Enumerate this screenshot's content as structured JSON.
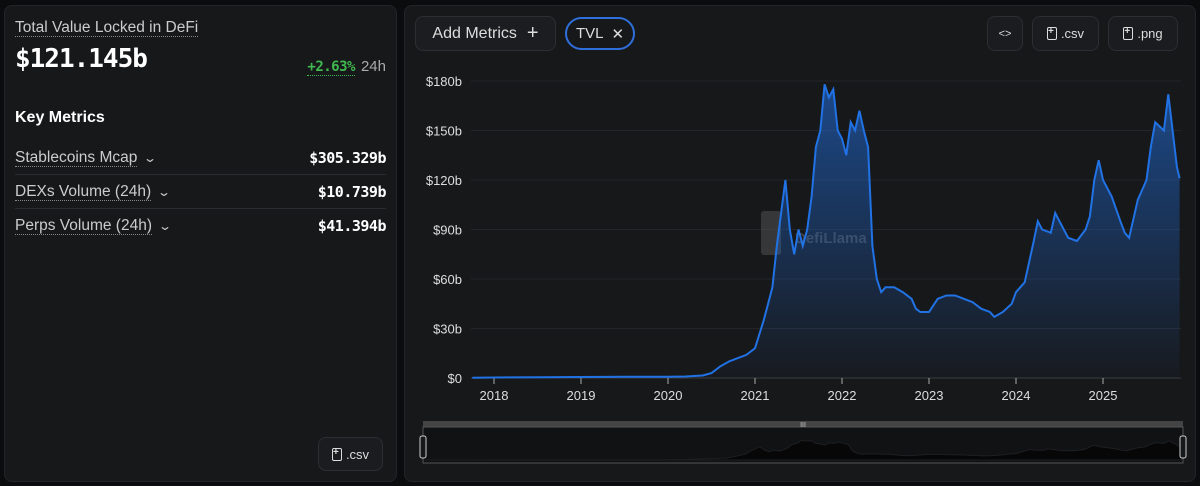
{
  "summary": {
    "title": "Total Value Locked in DeFi",
    "value": "$121.145b",
    "change_pct": "+2.63%",
    "change_period": "24h",
    "key_metrics_heading": "Key Metrics",
    "metrics": [
      {
        "label": "Stablecoins Mcap",
        "value": "$305.329b"
      },
      {
        "label": "DEXs Volume (24h)",
        "value": "$10.739b"
      },
      {
        "label": "Perps Volume (24h)",
        "value": "$41.394b"
      }
    ],
    "csv_label": ".csv"
  },
  "toolbar": {
    "add_metrics_label": "Add Metrics",
    "add_icon": "plus-icon",
    "chip_label": "TVL",
    "chip_close_icon": "close-icon",
    "embed_label": "<>",
    "csv_label": ".csv",
    "png_label": ".png"
  },
  "watermark": "DefiLlama",
  "colors": {
    "line": "#2172e5",
    "positive": "#3fb950",
    "chip_border": "#2f6fdc"
  },
  "chart_data": {
    "type": "area",
    "series": [
      {
        "name": "TVL",
        "x": [
          2017.75,
          2018.0,
          2018.5,
          2019.0,
          2019.5,
          2020.0,
          2020.2,
          2020.4,
          2020.5,
          2020.6,
          2020.7,
          2020.8,
          2020.9,
          2021.0,
          2021.1,
          2021.15,
          2021.2,
          2021.25,
          2021.3,
          2021.35,
          2021.4,
          2021.45,
          2021.5,
          2021.55,
          2021.6,
          2021.65,
          2021.7,
          2021.75,
          2021.8,
          2021.85,
          2021.9,
          2021.95,
          2022.0,
          2022.05,
          2022.1,
          2022.15,
          2022.2,
          2022.25,
          2022.3,
          2022.35,
          2022.4,
          2022.45,
          2022.5,
          2022.6,
          2022.7,
          2022.8,
          2022.85,
          2022.9,
          2023.0,
          2023.1,
          2023.2,
          2023.3,
          2023.4,
          2023.5,
          2023.6,
          2023.7,
          2023.75,
          2023.85,
          2023.95,
          2024.0,
          2024.1,
          2024.2,
          2024.25,
          2024.3,
          2024.4,
          2024.45,
          2024.5,
          2024.6,
          2024.7,
          2024.8,
          2024.85,
          2024.9,
          2024.95,
          2025.0,
          2025.1,
          2025.2,
          2025.25,
          2025.3,
          2025.4,
          2025.5,
          2025.55,
          2025.6,
          2025.7,
          2025.75,
          2025.8,
          2025.85,
          2025.88
        ],
        "values": [
          0.2,
          0.3,
          0.5,
          0.6,
          0.7,
          0.8,
          0.9,
          1.5,
          3,
          7,
          10,
          12,
          14,
          18,
          35,
          45,
          55,
          80,
          100,
          120,
          90,
          75,
          90,
          80,
          90,
          110,
          140,
          150,
          178,
          170,
          175,
          150,
          145,
          135,
          155,
          150,
          162,
          150,
          140,
          80,
          60,
          52,
          55,
          55,
          52,
          48,
          42,
          40,
          40,
          48,
          50,
          50,
          48,
          46,
          42,
          40,
          37,
          40,
          45,
          52,
          58,
          82,
          95,
          90,
          88,
          100,
          95,
          85,
          83,
          90,
          98,
          120,
          132,
          120,
          110,
          95,
          88,
          85,
          108,
          120,
          140,
          155,
          150,
          172,
          150,
          128,
          121
        ]
      }
    ],
    "y_ticks": [
      "$0",
      "$30b",
      "$60b",
      "$90b",
      "$120b",
      "$150b",
      "$180b"
    ],
    "y_tick_values": [
      0,
      30,
      60,
      90,
      120,
      150,
      180
    ],
    "x_ticks": [
      "2018",
      "2019",
      "2020",
      "2021",
      "2022",
      "2023",
      "2024",
      "2025"
    ],
    "ylim": [
      0,
      180
    ],
    "xlim": [
      2017.73,
      2025.9
    ],
    "grid": true,
    "brush": true
  }
}
